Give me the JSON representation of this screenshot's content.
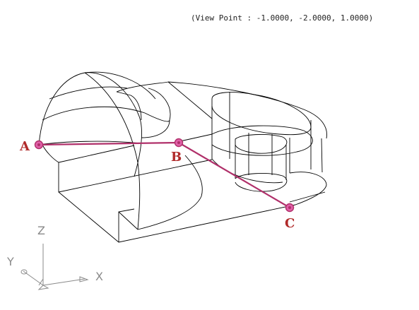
{
  "view_point_text": "(View Point : -1.0000, -2.0000, 1.0000)",
  "points": [
    {
      "label": "A"
    },
    {
      "label": "B"
    },
    {
      "label": "C"
    }
  ],
  "ucs_axes": {
    "x": "X",
    "y": "Y",
    "z": "Z"
  },
  "colors": {
    "wireframe": "#000000",
    "point_path": "#b0306a",
    "point_label": "#b02a2a",
    "ucs_icon": "#8a8a8a"
  }
}
